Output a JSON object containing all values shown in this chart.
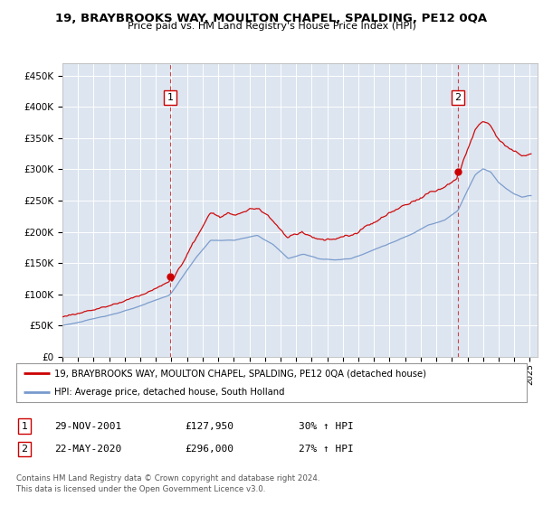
{
  "title": "19, BRAYBROOKS WAY, MOULTON CHAPEL, SPALDING, PE12 0QA",
  "subtitle": "Price paid vs. HM Land Registry's House Price Index (HPI)",
  "plot_bg_color": "#dde5f0",
  "ylim": [
    0,
    470000
  ],
  "yticks": [
    0,
    50000,
    100000,
    150000,
    200000,
    250000,
    300000,
    350000,
    400000,
    450000
  ],
  "ytick_labels": [
    "£0",
    "£50K",
    "£100K",
    "£150K",
    "£200K",
    "£250K",
    "£300K",
    "£350K",
    "£400K",
    "£450K"
  ],
  "sale1_date": 2001.91,
  "sale1_price": 127950,
  "sale1_label": "1",
  "sale2_date": 2020.38,
  "sale2_price": 296000,
  "sale2_label": "2",
  "legend_line1": "19, BRAYBROOKS WAY, MOULTON CHAPEL, SPALDING, PE12 0QA (detached house)",
  "legend_line2": "HPI: Average price, detached house, South Holland",
  "table_row1": [
    "1",
    "29-NOV-2001",
    "£127,950",
    "30% ↑ HPI"
  ],
  "table_row2": [
    "2",
    "22-MAY-2020",
    "£296,000",
    "27% ↑ HPI"
  ],
  "footer": "Contains HM Land Registry data © Crown copyright and database right 2024.\nThis data is licensed under the Open Government Licence v3.0.",
  "red_color": "#cc0000",
  "blue_color": "#7799cc",
  "vline_color": "#cc0000",
  "grid_color": "#ffffff",
  "xmin": 1995,
  "xmax": 2025.5
}
